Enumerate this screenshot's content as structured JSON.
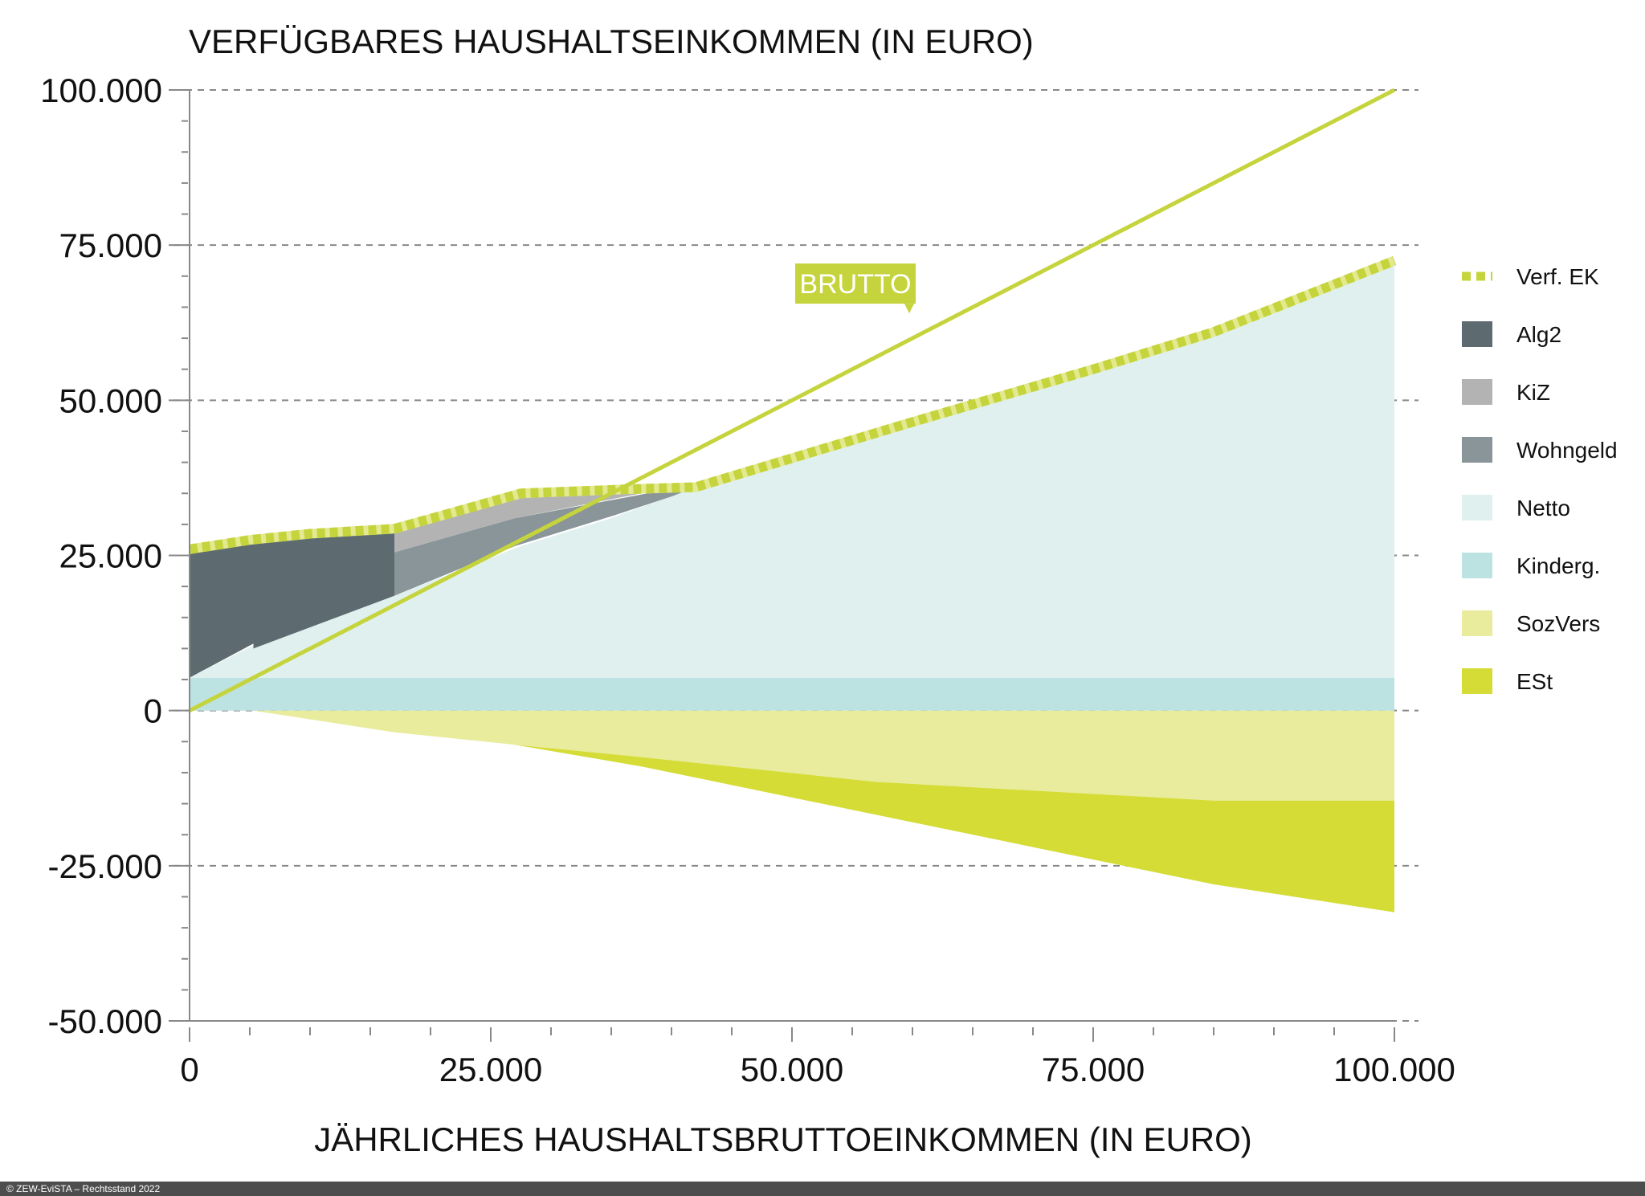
{
  "chart_data": {
    "type": "area",
    "title": "VERFÜGBARES HAUSHALTSEINKOMMEN (IN EURO)",
    "xlabel": "JÄHRLICHES HAUSHALTSBRUTTOEINKOMMEN (IN EURO)",
    "ylabel": "",
    "xlim": [
      0,
      100000
    ],
    "ylim": [
      -50000,
      100000
    ],
    "x_ticks": [
      0,
      25000,
      50000,
      75000,
      100000
    ],
    "x_tick_labels": [
      "0",
      "25.000",
      "50.000",
      "75.000",
      "100.000"
    ],
    "y_ticks": [
      -50000,
      -25000,
      0,
      25000,
      50000,
      75000,
      100000
    ],
    "y_tick_labels": [
      "-50.000",
      "-25.000",
      "0",
      "25.000",
      "50.000",
      "75.000",
      "100.000"
    ],
    "grid": true,
    "legend_position": "right",
    "annotation": {
      "text": "BRUTTO",
      "x": 60000,
      "y": 60000
    },
    "legend": [
      {
        "label": "Verf. EK",
        "color": "#c5d43c",
        "style": "dashed"
      },
      {
        "label": "Alg2",
        "color": "#5d6b70"
      },
      {
        "label": "KiZ",
        "color": "#b3b3b3"
      },
      {
        "label": "Wohngeld",
        "color": "#8a9599"
      },
      {
        "label": "Netto",
        "color": "#dff0ef"
      },
      {
        "label": "Kinderg.",
        "color": "#bde2e2"
      },
      {
        "label": "SozVers",
        "color": "#e8ec9c"
      },
      {
        "label": "ESt",
        "color": "#d4dc35"
      }
    ],
    "series": [
      {
        "name": "Kinderg.",
        "color": "#bde2e2",
        "points": [
          [
            0,
            0
          ],
          [
            100000,
            0
          ],
          [
            100000,
            5300
          ],
          [
            0,
            5300
          ]
        ]
      },
      {
        "name": "Netto",
        "color": "#dff0ef",
        "points": [
          [
            0,
            5300
          ],
          [
            5300,
            10500
          ],
          [
            17000,
            18500
          ],
          [
            27500,
            26500
          ],
          [
            35000,
            31000
          ],
          [
            42000,
            36000
          ],
          [
            60000,
            46500
          ],
          [
            75000,
            55000
          ],
          [
            85000,
            61000
          ],
          [
            100000,
            72000
          ],
          [
            100000,
            5300
          ]
        ]
      },
      {
        "name": "Alg2",
        "color": "#5d6b70",
        "points": [
          [
            0,
            5300
          ],
          [
            5300,
            10800
          ],
          [
            5300,
            10000
          ],
          [
            17000,
            18500
          ],
          [
            17000,
            28700
          ],
          [
            10000,
            28200
          ],
          [
            5000,
            27500
          ],
          [
            0,
            25200
          ]
        ]
      },
      {
        "name": "Wohngeld",
        "color": "#8a9599",
        "points": [
          [
            17000,
            18500
          ],
          [
            27000,
            26500
          ],
          [
            35000,
            31300
          ],
          [
            40000,
            34500
          ],
          [
            42000,
            36000
          ],
          [
            38000,
            35000
          ],
          [
            27000,
            31000
          ],
          [
            17000,
            25500
          ]
        ]
      },
      {
        "name": "KiZ",
        "color": "#b3b3b3",
        "points": [
          [
            17000,
            25500
          ],
          [
            27000,
            31000
          ],
          [
            38000,
            35200
          ],
          [
            42000,
            36000
          ],
          [
            37000,
            35700
          ],
          [
            27500,
            34700
          ],
          [
            22000,
            32000
          ],
          [
            17000,
            29500
          ]
        ]
      },
      {
        "name": "SozVers",
        "color": "#e8ec9c",
        "points": [
          [
            5300,
            0
          ],
          [
            100000,
            0
          ],
          [
            100000,
            -14500
          ],
          [
            85000,
            -14500
          ],
          [
            57000,
            -11500
          ],
          [
            37500,
            -7500
          ],
          [
            27000,
            -5500
          ],
          [
            17000,
            -3500
          ],
          [
            5300,
            0
          ]
        ]
      },
      {
        "name": "ESt",
        "color": "#d4dc35",
        "points": [
          [
            27000,
            -5500
          ],
          [
            37500,
            -7500
          ],
          [
            57000,
            -11500
          ],
          [
            85000,
            -14500
          ],
          [
            100000,
            -14500
          ],
          [
            100000,
            -32500
          ],
          [
            85000,
            -28000
          ],
          [
            60000,
            -18000
          ],
          [
            37500,
            -9000
          ]
        ]
      },
      {
        "name": "Verf. EK",
        "color": "#c5d43c",
        "line": true,
        "dashed": true,
        "points": [
          [
            0,
            26000
          ],
          [
            5000,
            27500
          ],
          [
            10000,
            28500
          ],
          [
            17000,
            29300
          ],
          [
            22000,
            32000
          ],
          [
            27500,
            35000
          ],
          [
            37000,
            35700
          ],
          [
            42000,
            36000
          ],
          [
            60000,
            46500
          ],
          [
            75000,
            55000
          ],
          [
            85000,
            61000
          ],
          [
            100000,
            72500
          ]
        ]
      },
      {
        "name": "BRUTTO",
        "color": "#c5d43c",
        "line": true,
        "points": [
          [
            0,
            0
          ],
          [
            100000,
            100000
          ]
        ]
      }
    ]
  },
  "footer": {
    "text": "© ZEW-EviSTA – Rechtsstand 2022"
  }
}
